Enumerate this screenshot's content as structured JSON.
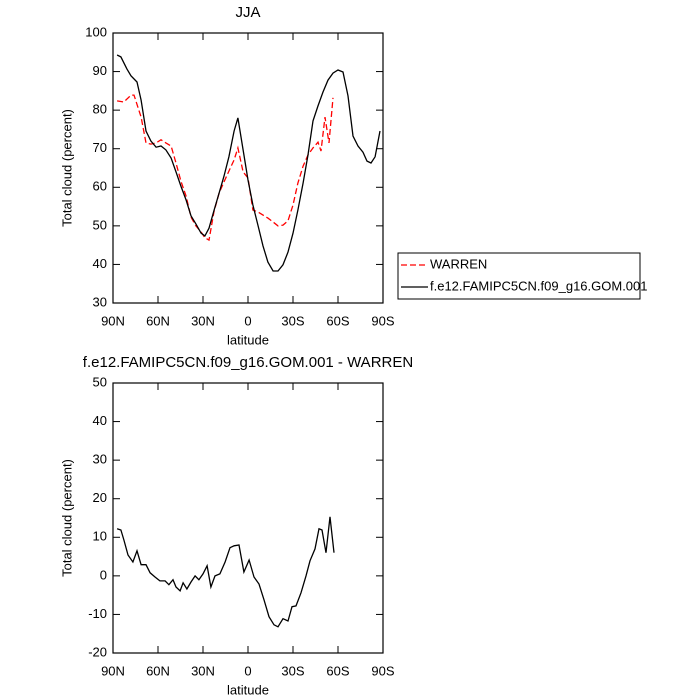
{
  "chart_data": [
    {
      "type": "line",
      "title": "JJA",
      "xlabel": "latitude",
      "ylabel": "Total cloud (percent)",
      "xlim": [
        90,
        -90
      ],
      "xticks": [
        {
          "value": 90,
          "label": "90N"
        },
        {
          "value": 60,
          "label": "60N"
        },
        {
          "value": 30,
          "label": "30N"
        },
        0,
        {
          "value": -30,
          "label": "30S"
        },
        {
          "value": -60,
          "label": "60S"
        },
        {
          "value": -90,
          "label": "90S"
        }
      ],
      "ylim": [
        30,
        100
      ],
      "yticks": [
        30,
        40,
        50,
        60,
        70,
        80,
        90,
        100
      ],
      "legend": "right",
      "series": [
        {
          "name": "WARREN",
          "color": "#ff0000",
          "dashed": true,
          "x": [
            87.3,
            82.7,
            78,
            76,
            71.3,
            68,
            64.7,
            61.3,
            58,
            54.7,
            51.3,
            48,
            44.7,
            41.3,
            38,
            34.7,
            31.3,
            28.7,
            26,
            22.7,
            19.3,
            16,
            12.7,
            9.3,
            6.7,
            3.3,
            0,
            -3.3,
            -6.7,
            -10,
            -13.3,
            -16.7,
            -20,
            -23.3,
            -26.7,
            -30,
            -33.3,
            -36.7,
            -40,
            -43.3,
            -46.7,
            -48.7,
            -51.3,
            -54,
            -56.7
          ],
          "values": [
            82.4,
            82.1,
            83.9,
            83.9,
            78.2,
            71.5,
            71.2,
            71.5,
            72.3,
            71.5,
            70.7,
            66.3,
            61.6,
            57.7,
            52.3,
            50,
            48.4,
            46.9,
            46.3,
            53.6,
            58.5,
            61.4,
            64.2,
            67.1,
            70.2,
            64,
            62.4,
            54.1,
            53.6,
            52.8,
            52,
            51,
            50,
            50.2,
            51.3,
            55.4,
            61.1,
            65.5,
            68.4,
            70.2,
            71.7,
            69.4,
            78.2,
            71.5,
            83.2
          ]
        },
        {
          "name": "f.e12.FAMIPC5CN.f09_g16.GOM.001",
          "color": "#000000",
          "dashed": false,
          "x": [
            87.3,
            84.7,
            80.7,
            78,
            74,
            71.3,
            68,
            64.7,
            61.3,
            58,
            54.7,
            51.3,
            48,
            44.7,
            41.3,
            38,
            34.7,
            31.3,
            28.7,
            26,
            22.7,
            19.3,
            16,
            12.7,
            9.3,
            6.7,
            3.3,
            0,
            -3.3,
            -6.7,
            -10,
            -13.3,
            -16.7,
            -20,
            -23.3,
            -26.7,
            -30,
            -33.3,
            -36.7,
            -40,
            -43.3,
            -46.7,
            -50,
            -53.3,
            -56.7,
            -60,
            -63.3,
            -66.7,
            -70,
            -73.3,
            -76.7,
            -79.3,
            -82,
            -84.7,
            -88
          ],
          "values": [
            94.3,
            93.8,
            90.7,
            88.9,
            87.3,
            82.6,
            74.6,
            72,
            70.4,
            70.7,
            69.7,
            67.6,
            64,
            60.3,
            56.7,
            52.6,
            50.5,
            48.1,
            47.4,
            49.4,
            53.9,
            58.5,
            62.9,
            67.9,
            74.6,
            78,
            69.7,
            61.9,
            55.4,
            50,
            44.8,
            40.6,
            38.3,
            38.3,
            39.9,
            43.2,
            48.1,
            54.1,
            61.1,
            68.4,
            77.2,
            81.1,
            84.7,
            87.8,
            89.6,
            90.4,
            89.9,
            83.7,
            73.3,
            70.7,
            69.1,
            66.8,
            66.3,
            67.9,
            74.6
          ]
        }
      ]
    },
    {
      "type": "line",
      "title": "f.e12.FAMIPC5CN.f09_g16.GOM.001 - WARREN",
      "xlabel": "latitude",
      "ylabel": "Total cloud (percent)",
      "xlim": [
        90,
        -90
      ],
      "xticks": [
        {
          "value": 90,
          "label": "90N"
        },
        {
          "value": 60,
          "label": "60N"
        },
        {
          "value": 30,
          "label": "30N"
        },
        0,
        {
          "value": -30,
          "label": "30S"
        },
        {
          "value": -60,
          "label": "60S"
        },
        {
          "value": -90,
          "label": "90S"
        }
      ],
      "ylim": [
        -20,
        50
      ],
      "yticks": [
        -20,
        -10,
        0,
        10,
        20,
        30,
        40,
        50
      ],
      "series": [
        {
          "color": "#000000",
          "dashed": false,
          "x": [
            87.3,
            84.7,
            82.7,
            80,
            76.7,
            74,
            71.3,
            68,
            65.3,
            62,
            58.7,
            55.3,
            52.7,
            50,
            48,
            45.3,
            43.3,
            40.7,
            38,
            35.3,
            32.7,
            30,
            27.3,
            24.7,
            22,
            18.7,
            15.3,
            12,
            9.3,
            6,
            2.7,
            -0.7,
            -4,
            -7.3,
            -10.7,
            -14,
            -17.3,
            -20,
            -23.3,
            -26.7,
            -29.3,
            -32,
            -35.3,
            -38.7,
            -41.3,
            -44.7,
            -47.3,
            -49.3,
            -52,
            -54.7,
            -57.3
          ],
          "values": [
            12.2,
            11.9,
            9.3,
            5.4,
            3.6,
            6.5,
            2.9,
            2.9,
            0.8,
            -0.3,
            -1.3,
            -1.3,
            -2.3,
            -1,
            -2.9,
            -3.9,
            -1.8,
            -3.4,
            -1.6,
            0,
            -1,
            0.5,
            2.6,
            -2.9,
            0,
            0.5,
            3.6,
            7.3,
            7.8,
            8,
            1,
            4.1,
            -0.3,
            -2.1,
            -6.2,
            -10.6,
            -12.7,
            -13.2,
            -11.1,
            -11.7,
            -8,
            -7.8,
            -4.4,
            0,
            3.9,
            7,
            12.2,
            11.9,
            6,
            15.3,
            6
          ]
        }
      ]
    }
  ]
}
